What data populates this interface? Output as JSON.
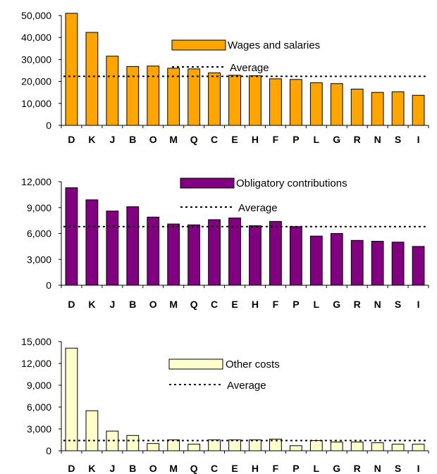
{
  "chart_data": [
    {
      "type": "bar",
      "categories": [
        "D",
        "K",
        "J",
        "B",
        "O",
        "M",
        "Q",
        "C",
        "E",
        "H",
        "F",
        "P",
        "L",
        "G",
        "R",
        "N",
        "S",
        "I"
      ],
      "series": [
        {
          "name": "Wages and salaries",
          "values": [
            51000,
            42300,
            31500,
            26800,
            27000,
            26000,
            25700,
            23900,
            22800,
            22600,
            21200,
            20900,
            19400,
            19000,
            16500,
            15000,
            15300,
            13700
          ]
        }
      ],
      "average": {
        "label": "Average",
        "value": 22300
      },
      "ylim": [
        0,
        50000
      ],
      "yticks": [
        "0",
        "10,000",
        "20,000",
        "30,000",
        "40,000",
        "50,000"
      ],
      "ytick_values": [
        0,
        10000,
        20000,
        30000,
        40000,
        50000
      ],
      "bar_color": "#FFA500",
      "legend_position": "upper-right",
      "grid": false
    },
    {
      "type": "bar",
      "categories": [
        "D",
        "K",
        "J",
        "B",
        "O",
        "M",
        "Q",
        "C",
        "E",
        "H",
        "F",
        "P",
        "L",
        "G",
        "R",
        "N",
        "S",
        "I"
      ],
      "series": [
        {
          "name": "Obligatory contributions",
          "values": [
            11300,
            9900,
            8600,
            9100,
            7900,
            7100,
            7000,
            7600,
            7800,
            6900,
            7400,
            6800,
            5700,
            6000,
            5200,
            5100,
            5000,
            4500
          ]
        }
      ],
      "average": {
        "label": "Average",
        "value": 6800
      },
      "ylim": [
        0,
        12000
      ],
      "yticks": [
        "0",
        "3,000",
        "6,000",
        "9,000",
        "12,000"
      ],
      "ytick_values": [
        0,
        3000,
        6000,
        9000,
        12000
      ],
      "bar_color": "#800080",
      "legend_position": "upper-right",
      "grid": false
    },
    {
      "type": "bar",
      "categories": [
        "D",
        "K",
        "J",
        "B",
        "O",
        "M",
        "Q",
        "C",
        "E",
        "H",
        "F",
        "P",
        "L",
        "G",
        "R",
        "N",
        "S",
        "I"
      ],
      "series": [
        {
          "name": "Other costs",
          "values": [
            14100,
            5500,
            2700,
            2100,
            1000,
            1500,
            900,
            1500,
            1500,
            1500,
            1600,
            700,
            1400,
            1200,
            1200,
            1100,
            900,
            900
          ]
        }
      ],
      "average": {
        "label": "Average",
        "value": 1400
      },
      "ylim": [
        0,
        15000
      ],
      "yticks": [
        "0",
        "3,000",
        "6,000",
        "9,000",
        "12,000",
        "15,000"
      ],
      "ytick_values": [
        0,
        3000,
        6000,
        9000,
        12000,
        15000
      ],
      "bar_color": "#FFFFCC",
      "legend_position": "upper-right",
      "grid": false
    }
  ]
}
